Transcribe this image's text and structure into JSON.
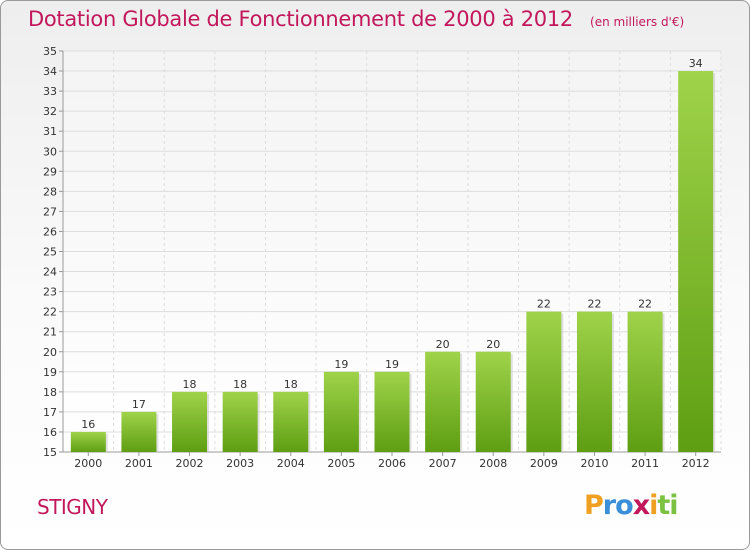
{
  "header": {
    "title": "Dotation Globale de Fonctionnement de 2000 à 2012",
    "unit": "(en milliers d'€)"
  },
  "footer": {
    "commune": "STIGNY",
    "logo": {
      "letters": [
        "P",
        "r",
        "o",
        "x",
        "i",
        "t",
        "i"
      ],
      "colors": [
        "#f0a020",
        "#3a8fd8",
        "#3a8fd8",
        "#c2185b",
        "#f0a020",
        "#7cc242",
        "#7cc242"
      ]
    }
  },
  "colors": {
    "bar_light": "#9fd34a",
    "bar_dark": "#5e9e12",
    "text": "#333333",
    "title": "#c2185b"
  },
  "chart_data": {
    "type": "bar",
    "categories": [
      "2000",
      "2001",
      "2002",
      "2003",
      "2004",
      "2005",
      "2006",
      "2007",
      "2008",
      "2009",
      "2010",
      "2011",
      "2012"
    ],
    "values": [
      16,
      17,
      18,
      18,
      18,
      19,
      19,
      20,
      20,
      22,
      22,
      22,
      34
    ],
    "ylim": [
      15,
      35
    ],
    "yticks": [
      15,
      16,
      17,
      18,
      19,
      20,
      21,
      22,
      23,
      24,
      25,
      26,
      27,
      28,
      29,
      30,
      31,
      32,
      33,
      34,
      35
    ],
    "grid": true,
    "data_labels": true
  }
}
